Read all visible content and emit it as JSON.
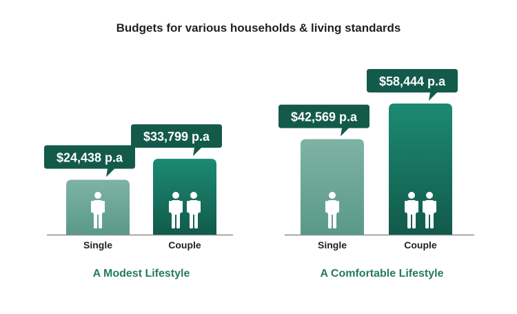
{
  "chart_data": {
    "type": "bar",
    "title": "Budgets for various households & living standards",
    "unit_suffix": "p.a",
    "currency": "$",
    "ylim": [
      0,
      62000
    ],
    "colors": {
      "single_top": "#7eb3a5",
      "single_bottom": "#5a9987",
      "couple_top": "#1c8a72",
      "couple_bottom": "#125a4b",
      "bubble": "#135a4a",
      "baseline": "#8a8a8a",
      "figure": "#ffffff",
      "group_title": "#237a63"
    },
    "groups": [
      {
        "name": "A Modest Lifestyle",
        "bars": [
          {
            "category": "Single",
            "value": 24438,
            "label": "$24,438 p.a",
            "people": 1
          },
          {
            "category": "Couple",
            "value": 33799,
            "label": "$33,799 p.a",
            "people": 2
          }
        ]
      },
      {
        "name": "A Comfortable Lifestyle",
        "bars": [
          {
            "category": "Single",
            "value": 42569,
            "label": "$42,569 p.a",
            "people": 1
          },
          {
            "category": "Couple",
            "value": 58444,
            "label": "$58,444 p.a",
            "people": 2
          }
        ]
      }
    ]
  }
}
